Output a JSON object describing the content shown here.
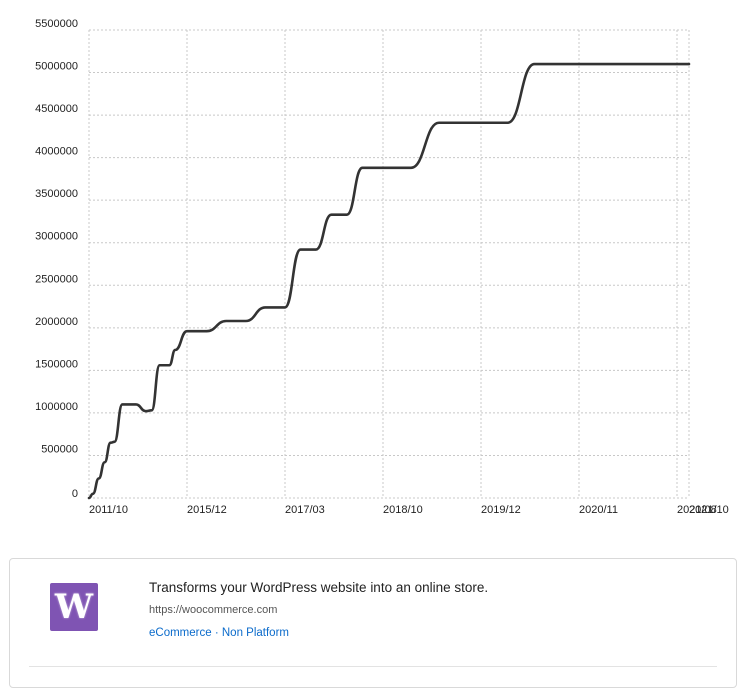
{
  "chart_data": {
    "type": "line",
    "title": "",
    "xlabel": "",
    "ylabel": "",
    "ylim": [
      0,
      5500000
    ],
    "y_ticks": [
      0,
      500000,
      1000000,
      1500000,
      2000000,
      2500000,
      3000000,
      3500000,
      4000000,
      4500000,
      5000000,
      5500000
    ],
    "x_tick_labels": [
      "2011/10",
      "2015/12",
      "2017/03",
      "2018/10",
      "2019/12",
      "2020/11",
      "2021/08",
      "2021/10"
    ],
    "grid": true,
    "series": [
      {
        "color": "#333333",
        "x": [
          "2011/10",
          "2011/12",
          "2012/03",
          "2012/06",
          "2012/09",
          "2012/11",
          "2013/03",
          "2013/06",
          "2013/10",
          "2014/03",
          "2014/06",
          "2014/10",
          "2015/03",
          "2015/06",
          "2015/12",
          "2016/03",
          "2016/06",
          "2016/09",
          "2016/12",
          "2017/03",
          "2017/06",
          "2017/09",
          "2017/12",
          "2018/03",
          "2018/06",
          "2018/10",
          "2019/02",
          "2019/06",
          "2019/10",
          "2019/12",
          "2020/03",
          "2020/06",
          "2020/11",
          "2021/02",
          "2021/06",
          "2021/10"
        ],
        "y": [
          0,
          50000,
          230000,
          420000,
          650000,
          660000,
          1100000,
          1100000,
          1100000,
          1020000,
          1030000,
          1560000,
          1560000,
          1740000,
          1960000,
          1960000,
          2080000,
          2080000,
          2240000,
          2240000,
          2920000,
          2920000,
          3330000,
          3330000,
          3880000,
          3880000,
          3880000,
          4410000,
          4410000,
          4410000,
          4410000,
          5100000,
          5100000,
          5100000,
          5100000,
          5100000
        ]
      }
    ]
  },
  "product": {
    "logo_letter": "W",
    "logo_color": "#7f54b3",
    "description": "Transforms your WordPress website into an online store.",
    "url": "https://woocommerce.com",
    "tag1": "eCommerce",
    "separator": " · ",
    "tag2": "Non Platform"
  }
}
